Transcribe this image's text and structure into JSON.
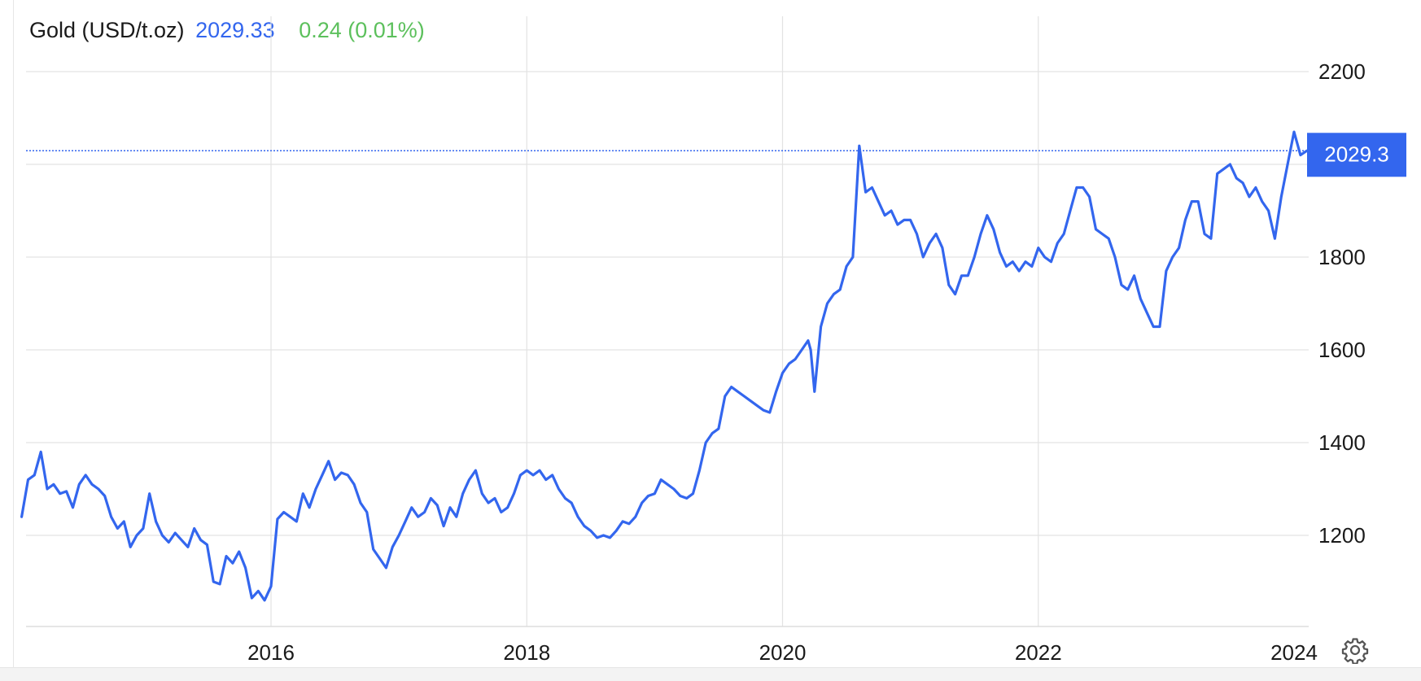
{
  "header": {
    "instrument": "Gold (USD/t.oz)",
    "price": "2029.33",
    "change": "0.24 (0.01%)"
  },
  "colors": {
    "line": "#3366ee",
    "change_positive": "#5cc05c",
    "grid": "#e3e3e3",
    "badge": "#3366ee"
  },
  "icons": {
    "settings": "gear-icon"
  },
  "chart_data": {
    "type": "line",
    "ylim": [
      1000,
      2320
    ],
    "xlim": [
      2014.05,
      2024.12
    ],
    "yticks": [
      1200,
      1400,
      1600,
      1800,
      2200
    ],
    "ytick_labels": [
      "1200",
      "1400",
      "1600",
      "1800",
      "2200"
    ],
    "xticks": [
      2016,
      2018,
      2020,
      2022,
      2024
    ],
    "xtick_labels": [
      "2016",
      "2018",
      "2020",
      "2022",
      "2024"
    ],
    "last_value_label": "2029.3",
    "last_value": 2029.3,
    "grid": true,
    "series": [
      {
        "x": [
          2014.05,
          2014.1,
          2014.15,
          2014.2,
          2014.25,
          2014.3,
          2014.35,
          2014.4,
          2014.45,
          2014.5,
          2014.55,
          2014.6,
          2014.65,
          2014.7,
          2014.75,
          2014.8,
          2014.85,
          2014.9,
          2014.95,
          2015.0,
          2015.05,
          2015.1,
          2015.15,
          2015.2,
          2015.25,
          2015.3,
          2015.35,
          2015.4,
          2015.45,
          2015.5,
          2015.55,
          2015.6,
          2015.65,
          2015.7,
          2015.75,
          2015.8,
          2015.85,
          2015.9,
          2015.95,
          2016.0,
          2016.05,
          2016.1,
          2016.15,
          2016.2,
          2016.25,
          2016.3,
          2016.35,
          2016.4,
          2016.45,
          2016.5,
          2016.55,
          2016.6,
          2016.65,
          2016.7,
          2016.75,
          2016.8,
          2016.85,
          2016.9,
          2016.95,
          2017.0,
          2017.05,
          2017.1,
          2017.15,
          2017.2,
          2017.25,
          2017.3,
          2017.35,
          2017.4,
          2017.45,
          2017.5,
          2017.55,
          2017.6,
          2017.65,
          2017.7,
          2017.75,
          2017.8,
          2017.85,
          2017.9,
          2017.95,
          2018.0,
          2018.05,
          2018.1,
          2018.15,
          2018.2,
          2018.25,
          2018.3,
          2018.35,
          2018.4,
          2018.45,
          2018.5,
          2018.55,
          2018.6,
          2018.65,
          2018.7,
          2018.75,
          2018.8,
          2018.85,
          2018.9,
          2018.95,
          2019.0,
          2019.05,
          2019.1,
          2019.15,
          2019.2,
          2019.25,
          2019.3,
          2019.35,
          2019.4,
          2019.45,
          2019.5,
          2019.55,
          2019.6,
          2019.65,
          2019.7,
          2019.75,
          2019.8,
          2019.85,
          2019.9,
          2019.95,
          2020.0,
          2020.05,
          2020.1,
          2020.15,
          2020.2,
          2020.22,
          2020.25,
          2020.3,
          2020.35,
          2020.4,
          2020.45,
          2020.5,
          2020.55,
          2020.6,
          2020.65,
          2020.7,
          2020.75,
          2020.8,
          2020.85,
          2020.9,
          2020.95,
          2021.0,
          2021.05,
          2021.1,
          2021.15,
          2021.2,
          2021.25,
          2021.3,
          2021.35,
          2021.4,
          2021.45,
          2021.5,
          2021.55,
          2021.6,
          2021.65,
          2021.7,
          2021.75,
          2021.8,
          2021.85,
          2021.9,
          2021.95,
          2022.0,
          2022.05,
          2022.1,
          2022.15,
          2022.2,
          2022.25,
          2022.3,
          2022.35,
          2022.4,
          2022.45,
          2022.5,
          2022.55,
          2022.6,
          2022.65,
          2022.7,
          2022.75,
          2022.8,
          2022.85,
          2022.9,
          2022.95,
          2023.0,
          2023.05,
          2023.1,
          2023.15,
          2023.2,
          2023.25,
          2023.3,
          2023.35,
          2023.4,
          2023.45,
          2023.5,
          2023.55,
          2023.6,
          2023.65,
          2023.7,
          2023.75,
          2023.8,
          2023.85,
          2023.9,
          2023.95,
          2024.0,
          2024.05,
          2024.1
        ],
        "values": [
          1240,
          1320,
          1330,
          1380,
          1300,
          1310,
          1290,
          1295,
          1260,
          1310,
          1330,
          1310,
          1300,
          1285,
          1240,
          1215,
          1230,
          1175,
          1200,
          1215,
          1290,
          1230,
          1200,
          1185,
          1205,
          1190,
          1175,
          1215,
          1190,
          1180,
          1100,
          1095,
          1155,
          1140,
          1165,
          1130,
          1065,
          1080,
          1060,
          1090,
          1235,
          1250,
          1240,
          1230,
          1290,
          1260,
          1300,
          1330,
          1360,
          1320,
          1335,
          1330,
          1310,
          1270,
          1250,
          1170,
          1150,
          1130,
          1175,
          1200,
          1230,
          1260,
          1240,
          1250,
          1280,
          1265,
          1220,
          1260,
          1240,
          1290,
          1320,
          1340,
          1290,
          1270,
          1280,
          1250,
          1260,
          1290,
          1330,
          1340,
          1330,
          1340,
          1320,
          1330,
          1300,
          1280,
          1270,
          1240,
          1220,
          1210,
          1195,
          1200,
          1195,
          1210,
          1230,
          1225,
          1240,
          1270,
          1285,
          1290,
          1320,
          1310,
          1300,
          1285,
          1280,
          1290,
          1340,
          1400,
          1420,
          1430,
          1500,
          1520,
          1510,
          1500,
          1490,
          1480,
          1470,
          1465,
          1510,
          1550,
          1570,
          1580,
          1600,
          1620,
          1600,
          1510,
          1650,
          1700,
          1720,
          1730,
          1780,
          1800,
          2040,
          1940,
          1950,
          1920,
          1890,
          1900,
          1870,
          1880,
          1880,
          1850,
          1800,
          1830,
          1850,
          1820,
          1740,
          1720,
          1760,
          1760,
          1800,
          1850,
          1890,
          1860,
          1810,
          1780,
          1790,
          1770,
          1790,
          1780,
          1820,
          1800,
          1790,
          1830,
          1850,
          1900,
          1950,
          1950,
          1930,
          1860,
          1850,
          1840,
          1800,
          1740,
          1730,
          1760,
          1710,
          1680,
          1650,
          1650,
          1770,
          1800,
          1820,
          1880,
          1920,
          1920,
          1850,
          1840,
          1980,
          1990,
          2000,
          1970,
          1960,
          1930,
          1950,
          1920,
          1900,
          1840,
          1930,
          2000,
          2070,
          2020,
          2029.3
        ]
      }
    ]
  }
}
